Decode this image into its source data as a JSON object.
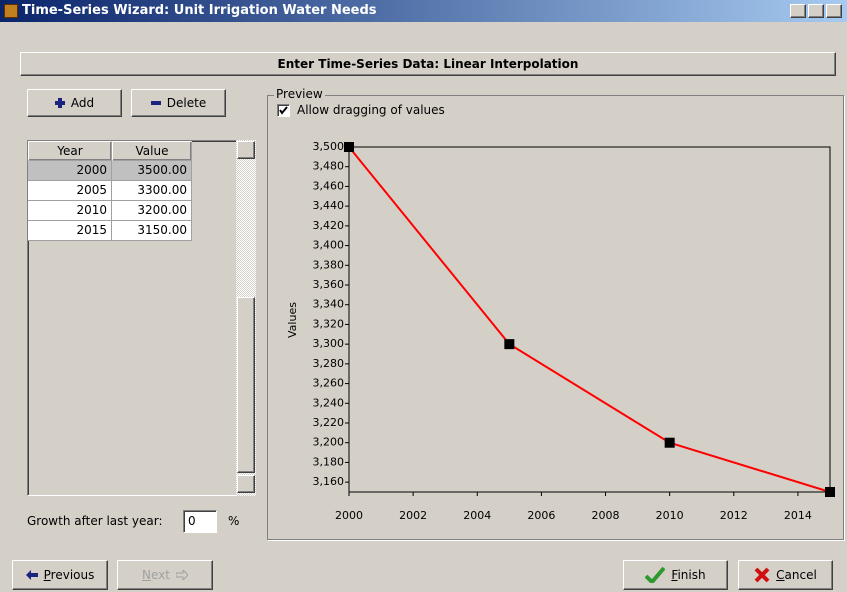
{
  "window": {
    "title": "Time-Series Wizard: Unit Irrigation Water Needs"
  },
  "header": "Enter Time-Series Data: Linear Interpolation",
  "buttons": {
    "add": "Add",
    "delete": "Delete",
    "previous": "Previous",
    "next": "Next",
    "finish": "Finish",
    "cancel": "Cancel"
  },
  "table": {
    "columns": [
      "Year",
      "Value"
    ],
    "rows": [
      [
        "2000",
        "3500.00"
      ],
      [
        "2005",
        "3300.00"
      ],
      [
        "2010",
        "3200.00"
      ],
      [
        "2015",
        "3150.00"
      ]
    ]
  },
  "growth": {
    "label": "Growth after last year:",
    "value": "0",
    "unit": "%"
  },
  "preview": {
    "label": "Preview",
    "checkbox": "Allow dragging of values"
  },
  "chart_data": {
    "type": "line",
    "ylabel": "Values",
    "x": [
      2000,
      2005,
      2010,
      2015
    ],
    "series": [
      {
        "color": "#ff0000",
        "marker_color": "#000000",
        "values": [
          3500,
          3300,
          3200,
          3150
        ]
      }
    ],
    "xlim": [
      2000,
      2015
    ],
    "xticks": [
      2000,
      2002,
      2004,
      2006,
      2008,
      2010,
      2012,
      2014
    ],
    "ylim": [
      3150,
      3500
    ],
    "yticks": [
      {
        "value": 3160,
        "label": "3,160"
      },
      {
        "value": 3180,
        "label": "3,180"
      },
      {
        "value": 3200,
        "label": "3,200"
      },
      {
        "value": 3220,
        "label": "3,220"
      },
      {
        "value": 3240,
        "label": "3,240"
      },
      {
        "value": 3260,
        "label": "3,260"
      },
      {
        "value": 3280,
        "label": "3,280"
      },
      {
        "value": 3300,
        "label": "3,300"
      },
      {
        "value": 3320,
        "label": "3,320"
      },
      {
        "value": 3340,
        "label": "3,340"
      },
      {
        "value": 3360,
        "label": "3,360"
      },
      {
        "value": 3380,
        "label": "3,380"
      },
      {
        "value": 3400,
        "label": "3,400"
      },
      {
        "value": 3420,
        "label": "3,420"
      },
      {
        "value": 3440,
        "label": "3,440"
      },
      {
        "value": 3460,
        "label": "3,460"
      },
      {
        "value": 3480,
        "label": "3,480"
      },
      {
        "value": 3500,
        "label": "3,500"
      }
    ],
    "grid": false
  }
}
